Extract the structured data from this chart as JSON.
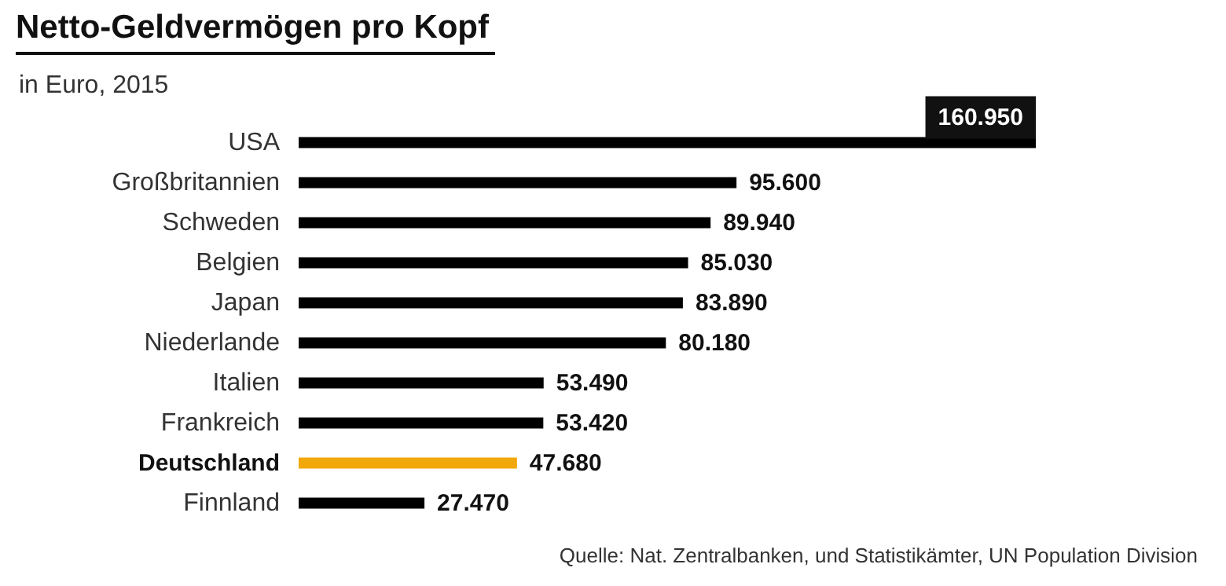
{
  "chart_data": {
    "type": "bar",
    "orientation": "horizontal",
    "title": "Netto-Geldvermögen pro Kopf",
    "subtitle": "in Euro, 2015",
    "categories": [
      "USA",
      "Großbritannien",
      "Schweden",
      "Belgien",
      "Japan",
      "Niederlande",
      "Italien",
      "Frankreich",
      "Deutschland",
      "Finnland"
    ],
    "values": [
      160950,
      95600,
      89940,
      85030,
      83890,
      80180,
      53490,
      53420,
      47680,
      27470
    ],
    "value_labels": [
      "160.950",
      "95.600",
      "89.940",
      "85.030",
      "83.890",
      "80.180",
      "53.490",
      "53.420",
      "47.680",
      "27.470"
    ],
    "colors": [
      "#000000",
      "#000000",
      "#000000",
      "#000000",
      "#000000",
      "#000000",
      "#000000",
      "#000000",
      "#f2a80a",
      "#000000"
    ],
    "annotations": [
      "Quelle: Nat. Zentralbanken, und Statistikämter, UN Population Division"
    ]
  }
}
